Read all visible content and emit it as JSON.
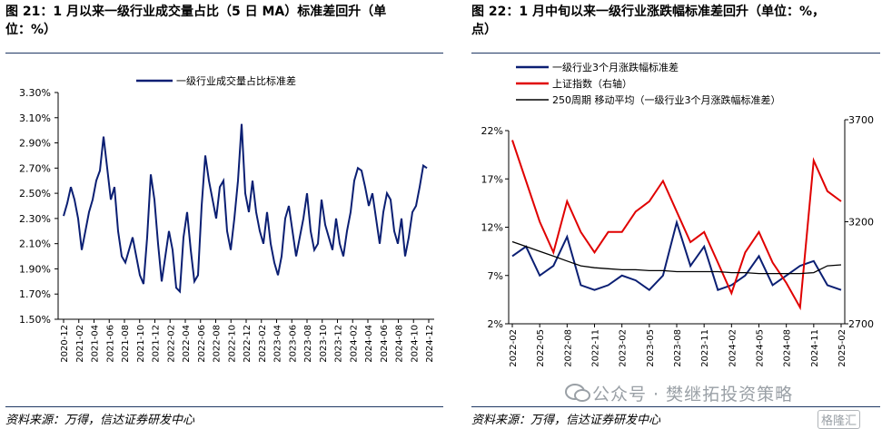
{
  "left_panel": {
    "title": "图 21：1 月以来一级行业成交量占比（5 日 MA）标准差回升（单位：%）",
    "title_line1": "图 21：1 月以来一级行业成交量占比（5 日 MA）标准差回升（单",
    "title_line2": "位：%）",
    "source": "资料来源：万得，信达证券研发中心"
  },
  "right_panel": {
    "title_line1": "图 22：1 月中旬以来一级行业涨跌幅标准差回升（单位：%，",
    "title_line2": "点）",
    "source": "资料来源：万得，信达证券研发中心"
  },
  "watermark": {
    "text": "公众号 · 樊继拓投资策略",
    "logo_text": "格隆汇"
  },
  "colors": {
    "navy": "#0b1f73",
    "red": "#e00000",
    "black": "#000000",
    "rule": "#1f3864"
  },
  "chart_data": [
    {
      "type": "line",
      "title": "",
      "legend": [
        "一级行业成交量占比标准差"
      ],
      "legend_position": "top-center",
      "y_tick_labels": [
        "1.50%",
        "1.70%",
        "1.90%",
        "2.10%",
        "2.30%",
        "2.50%",
        "2.70%",
        "2.90%",
        "3.10%",
        "3.30%"
      ],
      "ylim": [
        1.5,
        3.3
      ],
      "x_tick_labels": [
        "2020-12",
        "2021-02",
        "2021-04",
        "2021-06",
        "2021-08",
        "2021-10",
        "2021-12",
        "2022-02",
        "2022-04",
        "2022-06",
        "2022-08",
        "2022-10",
        "2022-12",
        "2023-02",
        "2023-04",
        "2023-06",
        "2023-08",
        "2023-10",
        "2023-12",
        "2024-02",
        "2024-04",
        "2024-06",
        "2024-08",
        "2024-10",
        "2024-12"
      ],
      "series": [
        {
          "name": "一级行业成交量占比标准差",
          "color": "#0b1f73",
          "x": [
            0,
            0.5,
            1,
            1.5,
            2,
            2.5,
            3,
            3.5,
            4,
            4.5,
            5,
            5.5,
            6,
            6.5,
            7,
            7.5,
            8,
            8.5,
            9,
            9.5,
            10,
            10.5,
            11,
            11.5,
            12,
            12.5,
            13,
            13.5,
            14,
            14.5,
            15,
            15.5,
            16,
            16.5,
            17,
            17.5,
            18,
            18.5,
            19,
            19.5,
            20,
            20.5,
            21,
            21.5,
            22,
            22.5,
            23,
            23.5,
            24,
            24.5,
            25,
            25.5,
            26,
            26.5,
            27,
            27.5,
            28,
            28.5,
            29,
            29.5,
            30,
            30.5,
            31,
            31.5,
            32,
            32.5,
            33,
            33.5,
            34,
            34.5,
            35,
            35.5,
            36,
            36.5,
            37,
            37.5,
            38,
            38.5,
            39,
            39.5,
            40,
            40.5,
            41,
            41.5,
            42,
            42.5,
            43,
            43.5,
            44,
            44.5,
            45,
            45.5,
            46,
            46.5,
            47,
            47.5,
            48,
            48.5,
            49,
            49.5,
            50
          ],
          "values": [
            2.32,
            2.42,
            2.55,
            2.45,
            2.3,
            2.05,
            2.2,
            2.35,
            2.45,
            2.6,
            2.68,
            2.95,
            2.7,
            2.45,
            2.55,
            2.2,
            2.0,
            1.95,
            2.05,
            2.15,
            2.0,
            1.85,
            1.78,
            2.15,
            2.65,
            2.45,
            2.1,
            1.8,
            2.0,
            2.2,
            2.05,
            1.75,
            1.72,
            2.15,
            2.35,
            2.05,
            1.8,
            1.85,
            2.4,
            2.8,
            2.6,
            2.45,
            2.3,
            2.55,
            2.6,
            2.2,
            2.05,
            2.3,
            2.6,
            3.05,
            2.5,
            2.35,
            2.6,
            2.35,
            2.2,
            2.1,
            2.35,
            2.1,
            1.95,
            1.85,
            2.0,
            2.3,
            2.4,
            2.2,
            2.0,
            2.15,
            2.3,
            2.5,
            2.2,
            2.05,
            2.1,
            2.45,
            2.25,
            2.15,
            2.05,
            2.3,
            2.1,
            2.0,
            2.2,
            2.35,
            2.6,
            2.7,
            2.68,
            2.55,
            2.4,
            2.5,
            2.3,
            2.1,
            2.35,
            2.5,
            2.45,
            2.2,
            2.1,
            2.3,
            2.0,
            2.15,
            2.35,
            2.4,
            2.55,
            2.72,
            2.7
          ]
        }
      ]
    },
    {
      "type": "line",
      "title": "",
      "legend": [
        "一级行业3个月涨跌幅标准差",
        "上证指数（右轴）",
        "250周期 移动平均（一级行业3个月涨跌幅标准差）"
      ],
      "legend_position": "top",
      "y_left_tick_labels": [
        "2%",
        "7%",
        "12%",
        "17%",
        "22%"
      ],
      "ylim_left": [
        2,
        22
      ],
      "y_right_tick_labels": [
        "2700",
        "3200",
        "3700"
      ],
      "ylim_right": [
        2700,
        3700
      ],
      "x_tick_labels": [
        "2022-02",
        "2022-05",
        "2022-08",
        "2022-11",
        "2023-02",
        "2023-05",
        "2023-08",
        "2023-11",
        "2024-02",
        "2024-05",
        "2024-08",
        "2024-11",
        "2025-02"
      ],
      "series": [
        {
          "name": "一级行业3个月涨跌幅标准差",
          "axis": "left",
          "color": "#0b1f73",
          "x": [
            0,
            0.5,
            1,
            1.5,
            2,
            2.5,
            3,
            3.5,
            4,
            4.5,
            5,
            5.5,
            6,
            6.5,
            7,
            7.5,
            8,
            8.5,
            9,
            9.5,
            10,
            10.5,
            11,
            11.5,
            12
          ],
          "values": [
            9,
            10,
            7,
            8,
            11,
            6,
            5.5,
            6,
            7,
            6.5,
            5.5,
            7,
            12.5,
            8,
            10,
            5.5,
            6,
            7,
            9,
            6,
            7,
            8,
            8.5,
            6,
            5.5
          ]
        },
        {
          "name": "上证指数（右轴）",
          "axis": "right",
          "color": "#e00000",
          "x": [
            0,
            0.5,
            1,
            1.5,
            2,
            2.5,
            3,
            3.5,
            4,
            4.5,
            5,
            5.5,
            6,
            6.5,
            7,
            7.5,
            8,
            8.5,
            9,
            9.5,
            10,
            10.5,
            11,
            11.5,
            12
          ],
          "values": [
            3600,
            3400,
            3200,
            3050,
            3300,
            3150,
            3050,
            3150,
            3150,
            3250,
            3300,
            3400,
            3250,
            3100,
            3150,
            3000,
            2850,
            3050,
            3150,
            3000,
            2900,
            2780,
            3500,
            3350,
            3300
          ]
        },
        {
          "name": "250周期 移动平均（一级行业3个月涨跌幅标准差）",
          "axis": "left",
          "color": "#000000",
          "x": [
            0,
            0.5,
            1,
            1.5,
            2,
            2.5,
            3,
            3.5,
            4,
            4.5,
            5,
            5.5,
            6,
            6.5,
            7,
            7.5,
            8,
            8.5,
            9,
            9.5,
            10,
            10.5,
            11,
            11.5,
            12
          ],
          "values": [
            10.5,
            10,
            9.5,
            9,
            8.5,
            8,
            7.8,
            7.7,
            7.6,
            7.6,
            7.5,
            7.5,
            7.4,
            7.4,
            7.4,
            7.4,
            7.3,
            7.3,
            7.2,
            7.2,
            7.2,
            7.2,
            7.3,
            8,
            8.1
          ]
        }
      ]
    }
  ]
}
